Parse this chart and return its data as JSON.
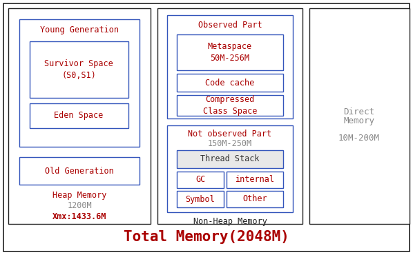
{
  "title": "Total Memory(2048M)",
  "title_color": "#aa0000",
  "title_fontsize": 15,
  "bg_color": "#ffffff",
  "box_color_blue": "#3355bb",
  "text_color_red": "#aa0000",
  "text_color_gray": "#888888",
  "text_color_dark": "#222222",
  "text_color_thread": "#333333",
  "young_gen_label": "Young Generation",
  "survivor_label": "Survivor Space\n(S0,S1)",
  "eden_label": "Eden Space",
  "old_gen_label": "Old Generation",
  "observed_label": "Observed Part",
  "metaspace_label": "Metaspace\n50M-256M",
  "code_cache_label": "Code cache",
  "compressed_label": "Compressed\nClass Space",
  "not_observed_label": "Not observed Part",
  "not_observed_size": "150M-250M",
  "thread_stack_label": "Thread Stack",
  "gc_label": "GC",
  "internal_label": "internal",
  "symbol_label": "Symbol",
  "other_label": "Other",
  "nonheap_label": "Non-Heap Memory",
  "heap_memory_label": "Heap Memory",
  "heap_size_label": "1200M",
  "heap_xmx_label": "Xmx:1433.6M",
  "direct_line1": "Direct",
  "direct_line2": "Memory",
  "direct_size": "10M-200M"
}
